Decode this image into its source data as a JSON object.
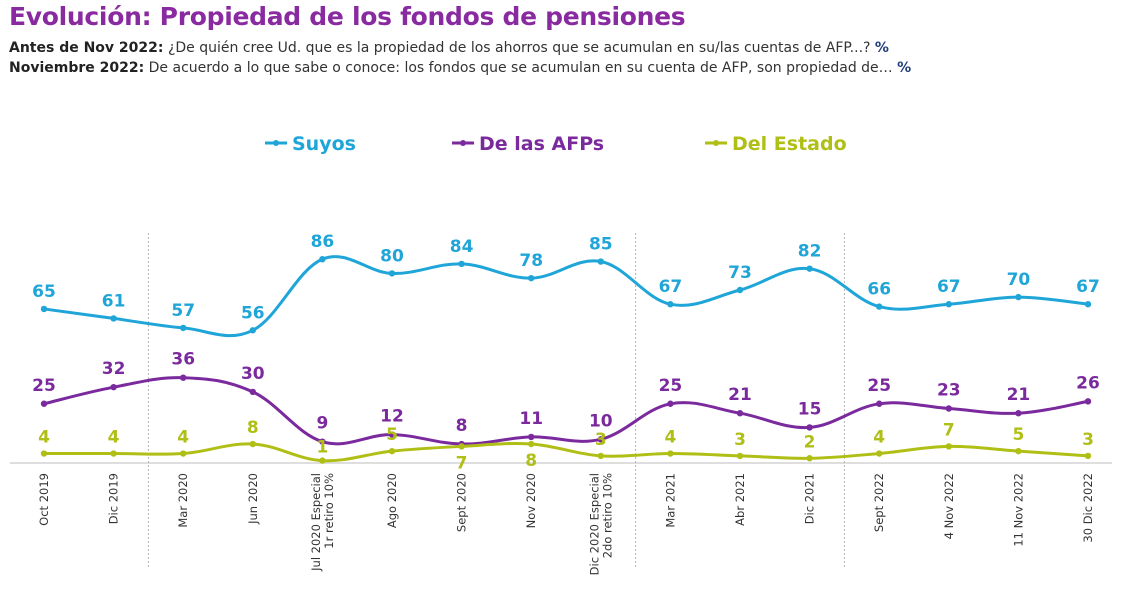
{
  "title": "Evolución: Propiedad de los fondos de pensiones",
  "subtitles": [
    {
      "lead": "Antes de Nov 2022:",
      "text": "¿De quién cree Ud. que es la propiedad de los ahorros que se acumulan en su/las cuentas de AFP...?",
      "pct": "%"
    },
    {
      "lead": "Noviembre 2022:",
      "text": "De acuerdo a lo que sabe o conoce: los fondos que se acumulan en su cuenta de AFP, son propiedad de…",
      "pct": "%"
    }
  ],
  "colors": {
    "suyos": "#1fa5d8",
    "afps": "#7b2a9e",
    "estado": "#b0bf16",
    "title": "#8a2aa0"
  },
  "chart_data": {
    "type": "line",
    "categories": [
      "Oct 2019",
      "Dic 2019",
      "Mar 2020",
      "Jun 2020",
      "Jul 2020 Especial\n1r retiro 10%",
      "Ago 2020",
      "Sept 2020",
      "Nov 2020",
      "Dic 2020 Especial\n2do retiro 10%",
      "Mar 2021",
      "Abr 2021",
      "Dic 2021",
      "Sept 2022",
      "4 Nov 2022",
      "11 Nov 2022",
      "30 Dic 2022"
    ],
    "series": [
      {
        "name": "Suyos",
        "values": [
          65,
          61,
          57,
          56,
          86,
          80,
          84,
          78,
          85,
          67,
          73,
          82,
          66,
          67,
          70,
          67
        ]
      },
      {
        "name": "De las AFPs",
        "values": [
          25,
          32,
          36,
          30,
          9,
          12,
          8,
          11,
          10,
          25,
          21,
          15,
          25,
          23,
          21,
          26
        ]
      },
      {
        "name": "Del Estado",
        "values": [
          4,
          4,
          4,
          8,
          1,
          5,
          7,
          8,
          3,
          4,
          3,
          2,
          4,
          7,
          5,
          3
        ]
      }
    ],
    "legend_position": "top",
    "separators_after": [
      "Dic 2019",
      "Dic 2020 Especial\n2do retiro 10%",
      "Dic 2021"
    ]
  }
}
